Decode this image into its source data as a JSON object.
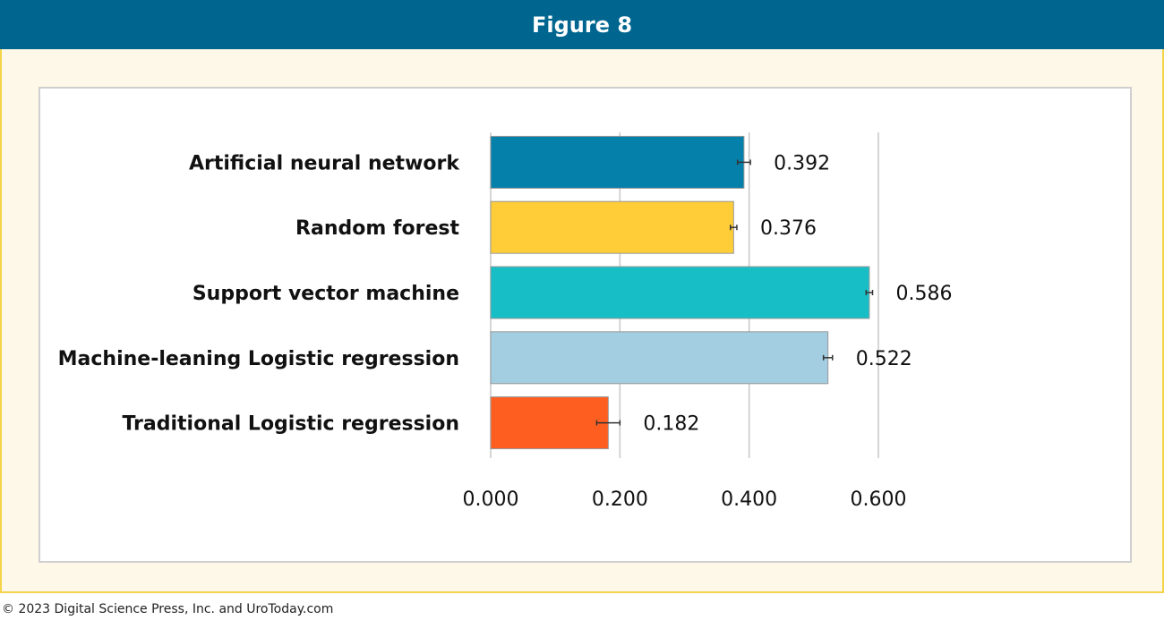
{
  "header": {
    "title": "Figure 8"
  },
  "footer": {
    "text": "© 2023 Digital Science Press, Inc. and UroToday.com"
  },
  "chart_data": {
    "type": "bar",
    "orientation": "horizontal",
    "categories": [
      "Artificial neural network",
      "Random forest",
      "Support vector machine",
      "Machine-leaning Logistic regression",
      "Traditional Logistic regression"
    ],
    "values": [
      0.392,
      0.376,
      0.586,
      0.522,
      0.182
    ],
    "errors": [
      0.01,
      0.005,
      0.005,
      0.007,
      0.018
    ],
    "colors": [
      "#0580ab",
      "#fecd37",
      "#17bec6",
      "#a3cde0",
      "#fe5f20"
    ],
    "xlim": [
      0,
      0.6
    ],
    "xticks": [
      {
        "value": 0,
        "label": "0.000"
      },
      {
        "value": 0.2,
        "label": "0.200"
      },
      {
        "value": 0.4,
        "label": "0.400"
      },
      {
        "value": 0.6,
        "label": "0.600"
      }
    ],
    "grid": true
  }
}
